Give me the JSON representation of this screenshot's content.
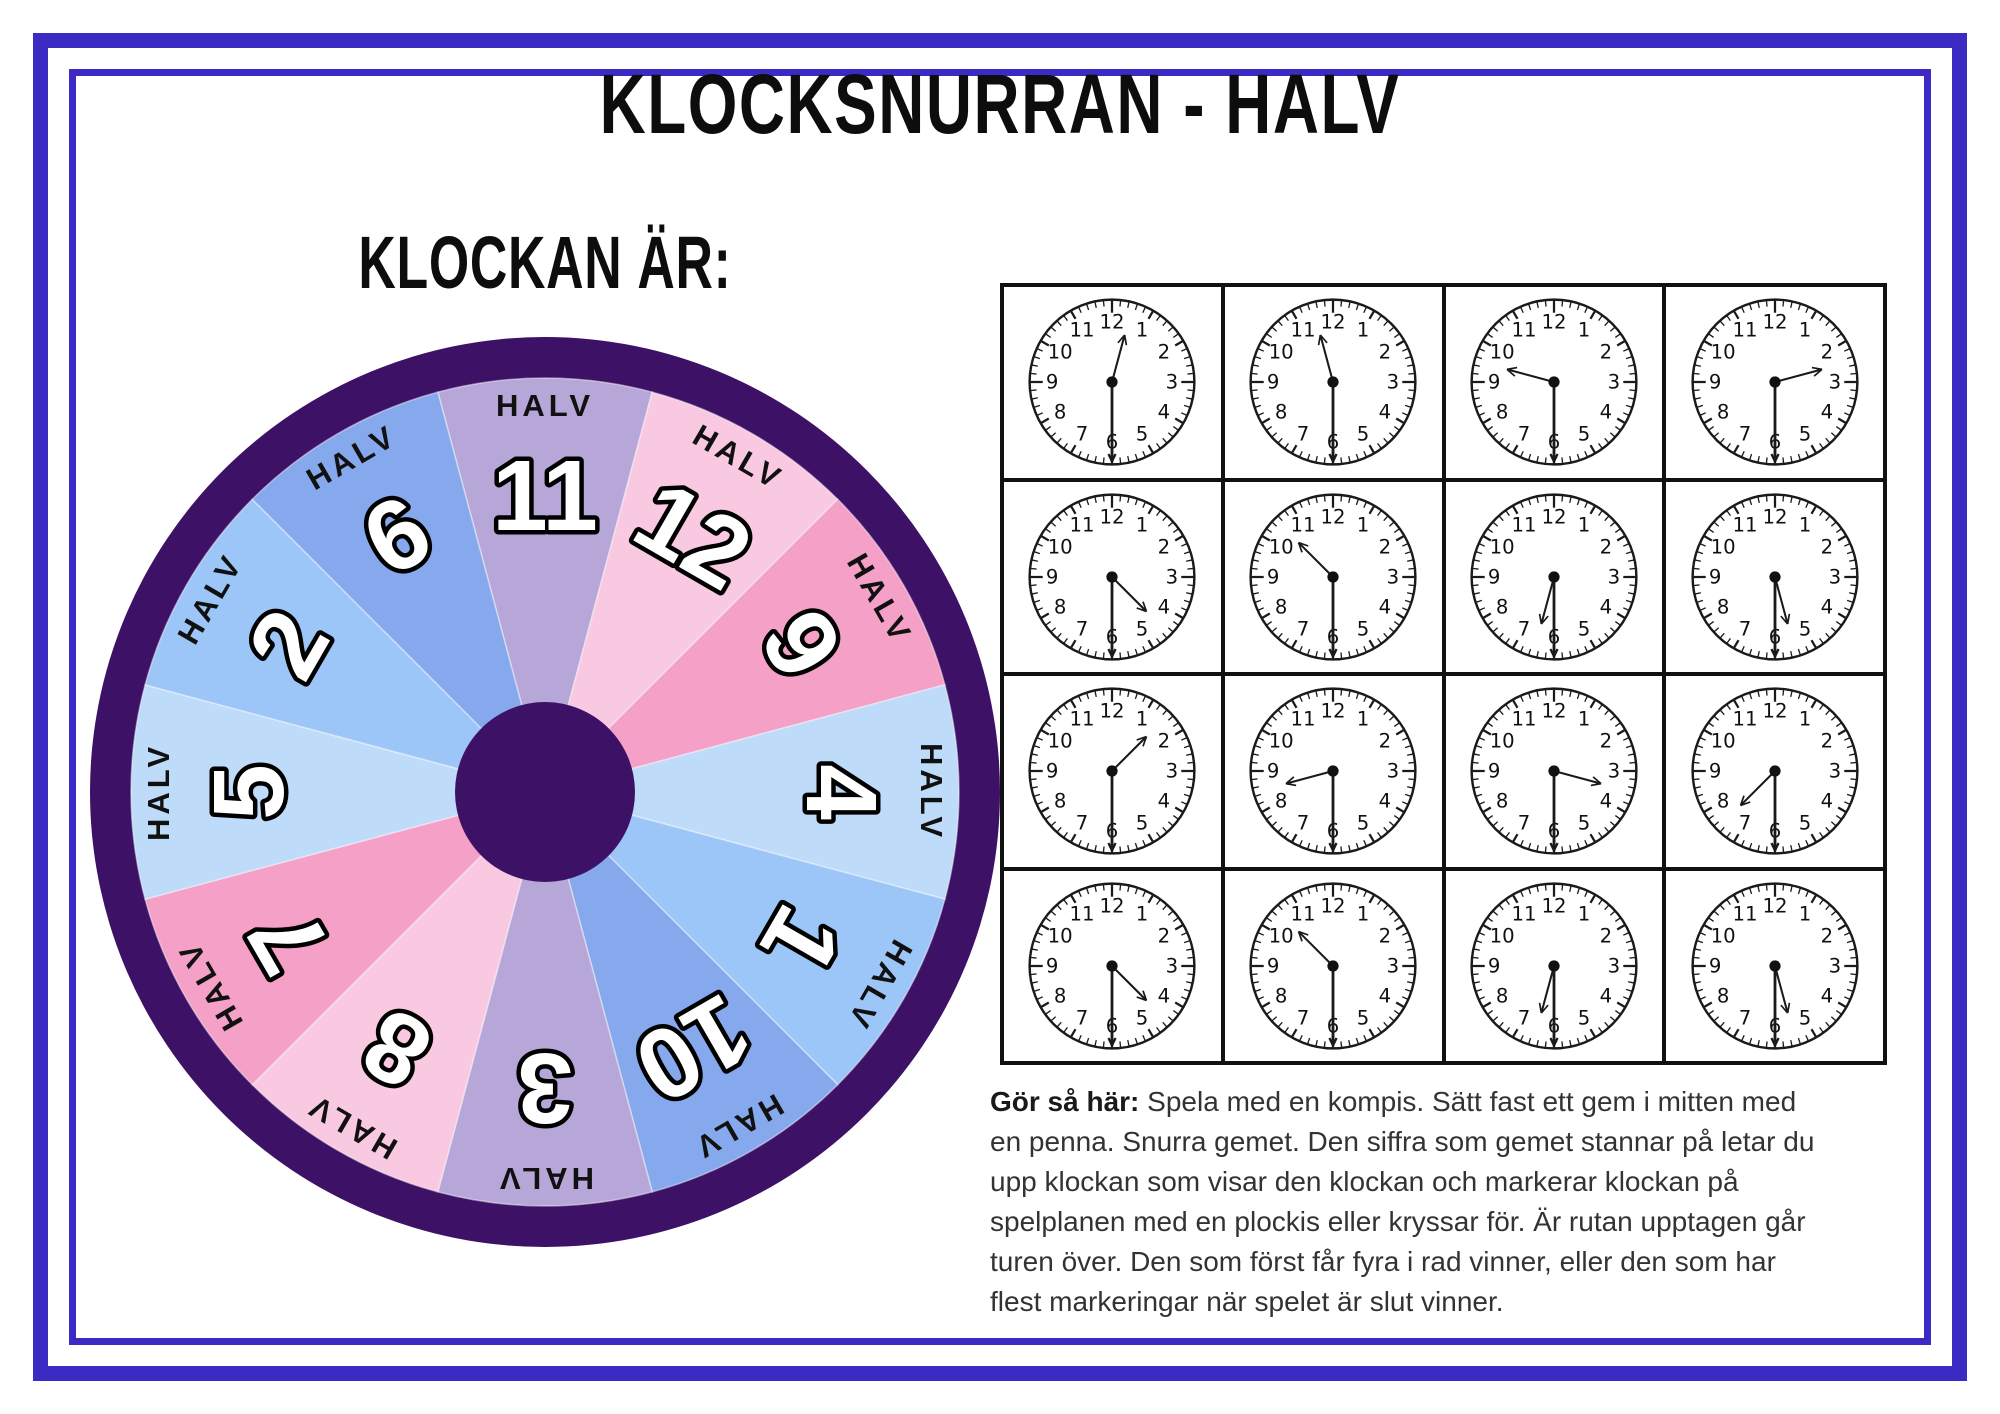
{
  "title": "KLOCKSNURRAN - HALV",
  "wheel": {
    "heading": "KLOCKAN ÄR:",
    "label": "HALV",
    "ring_color": "#3d1166",
    "hub_color": "#3d1166",
    "segments": [
      {
        "number": "11",
        "color": "#b7a7d9"
      },
      {
        "number": "12",
        "color": "#f9c9e1"
      },
      {
        "number": "9",
        "color": "#f5a0c6"
      },
      {
        "number": "4",
        "color": "#bedbfa"
      },
      {
        "number": "1",
        "color": "#9dc6f8"
      },
      {
        "number": "10",
        "color": "#85a9ec"
      },
      {
        "number": "3",
        "color": "#b7a7d9"
      },
      {
        "number": "8",
        "color": "#f9c9e1"
      },
      {
        "number": "7",
        "color": "#f5a0c6"
      },
      {
        "number": "5",
        "color": "#bedbfa"
      },
      {
        "number": "2",
        "color": "#9dc6f8"
      },
      {
        "number": "6",
        "color": "#85a9ec"
      }
    ]
  },
  "clock_grid": {
    "rows": 4,
    "cols": 4,
    "clock_numbers": [
      "12",
      "1",
      "2",
      "3",
      "4",
      "5",
      "6",
      "7",
      "8",
      "9",
      "10",
      "11"
    ],
    "times": [
      [
        "12:30",
        "11:30",
        "9:30",
        "2:30"
      ],
      [
        "4:30",
        "10:30",
        "6:30",
        "5:30"
      ],
      [
        "1:30",
        "8:30",
        "3:30",
        "7:30"
      ],
      [
        "4:30",
        "10:30",
        "6:30",
        "5:30"
      ]
    ]
  },
  "instructions": {
    "label": "Gör så här:",
    "lines": [
      "Spela med en kompis. Sätt fast ett gem i mitten med",
      "en penna. Snurra gemet. Den siffra som gemet stannar på letar du",
      "upp klockan som visar den klockan och markerar klockan på",
      "spelplanen med en plockis eller kryssar för. Är rutan upptagen går",
      "turen över. Den som först får fyra i rad vinner, eller den som har",
      "flest markeringar när spelet är slut vinner."
    ]
  },
  "colors": {
    "border": "#3c2ac4",
    "grid_line": "#111111"
  }
}
